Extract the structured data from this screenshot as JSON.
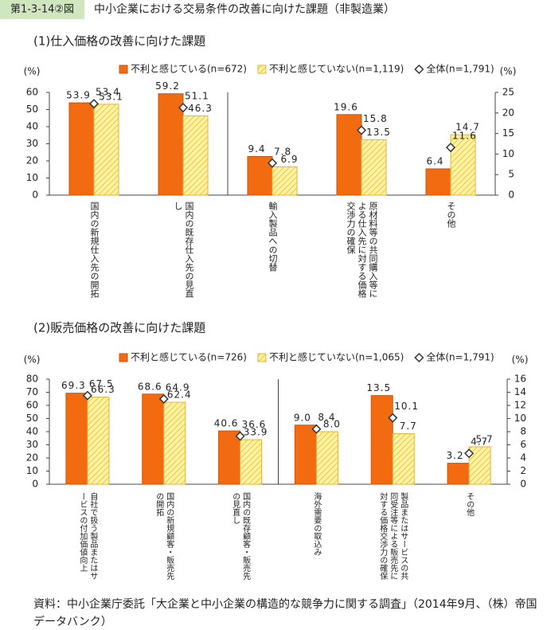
{
  "header": {
    "figure_no": "第1-3-14②図",
    "title": "中小企業における交易条件の改善に向けた課題（非製造業）"
  },
  "source": "資料：中小企業庁委託「大企業と中小企業の構造的な競争力に関する調査」（2014年9月、（株）帝国データバンク）",
  "chart_data": [
    {
      "type": "bar",
      "title": "(1)仕入価格の改善に向けた課題",
      "categories": [
        "国内の新規仕入先の開拓",
        "国内の既存仕入先の見直し",
        "輸入製品への切替",
        "原材料等の共同購入等による仕入先に対する価格交渉力の確保",
        "その他"
      ],
      "category_axis": [
        "y",
        "y",
        "y2",
        "y2",
        "y2"
      ],
      "series": [
        {
          "name": "不利と感じている(n=672)",
          "color": "#f26b10",
          "values": [
            53.9,
            59.2,
            9.4,
            19.6,
            6.4
          ]
        },
        {
          "name": "不利と感じていない(n=1,119)",
          "color": "#fff3a6",
          "fill_pattern": "diagonal",
          "values": [
            53.1,
            46.3,
            6.9,
            13.5,
            14.7
          ]
        },
        {
          "name": "全体(n=1,791)",
          "color": "#ffffff",
          "mark": "diamond",
          "values": [
            53.4,
            51.1,
            7.8,
            15.8,
            11.6
          ]
        }
      ],
      "y_label": "(%)",
      "y2_label": "(%)",
      "ylim": [
        0,
        60
      ],
      "yticks": [
        0,
        10,
        20,
        30,
        40,
        50,
        60
      ],
      "y2lim": [
        0,
        25
      ],
      "y2ticks": [
        0,
        5,
        10,
        15,
        20,
        25
      ]
    },
    {
      "type": "bar",
      "title": "(2)販売価格の改善に向けた課題",
      "categories": [
        "自社で扱う製品またはサービスの付加価値向上",
        "国内の新規顧客・販売先の開拓",
        "国内の既存顧客・販売先の見直し",
        "海外需要の取込み",
        "製品またはサービスの共同受注等による販売先に対する価格交渉力の確保",
        "その他"
      ],
      "category_axis": [
        "y",
        "y",
        "y",
        "y2",
        "y2",
        "y2"
      ],
      "series": [
        {
          "name": "不利と感じている(n=726)",
          "color": "#f26b10",
          "values": [
            69.3,
            68.6,
            40.6,
            9.0,
            13.5,
            3.2
          ],
          "value_labels": [
            "69.3",
            "68.6",
            "40.6",
            "9.0",
            "13.5",
            "3.2"
          ]
        },
        {
          "name": "不利と感じていない(n=1,065)",
          "color": "#fff3a6",
          "fill_pattern": "diagonal",
          "values": [
            66.3,
            62.4,
            33.9,
            8.0,
            7.7,
            5.7
          ],
          "value_labels": [
            "66.3",
            "62.4",
            "33.9",
            "8.0",
            "7.7",
            "5.7"
          ]
        },
        {
          "name": "全体(n=1,791)",
          "color": "#ffffff",
          "mark": "diamond",
          "values": [
            67.5,
            64.9,
            36.6,
            8.4,
            10.1,
            4.7
          ]
        }
      ],
      "y_label": "(%)",
      "y2_label": "(%)",
      "ylim": [
        0,
        80
      ],
      "yticks": [
        0,
        10,
        20,
        30,
        40,
        50,
        60,
        70,
        80
      ],
      "y2lim": [
        0,
        16
      ],
      "y2ticks": [
        0,
        2,
        4,
        6,
        8,
        10,
        12,
        14,
        16
      ]
    }
  ]
}
